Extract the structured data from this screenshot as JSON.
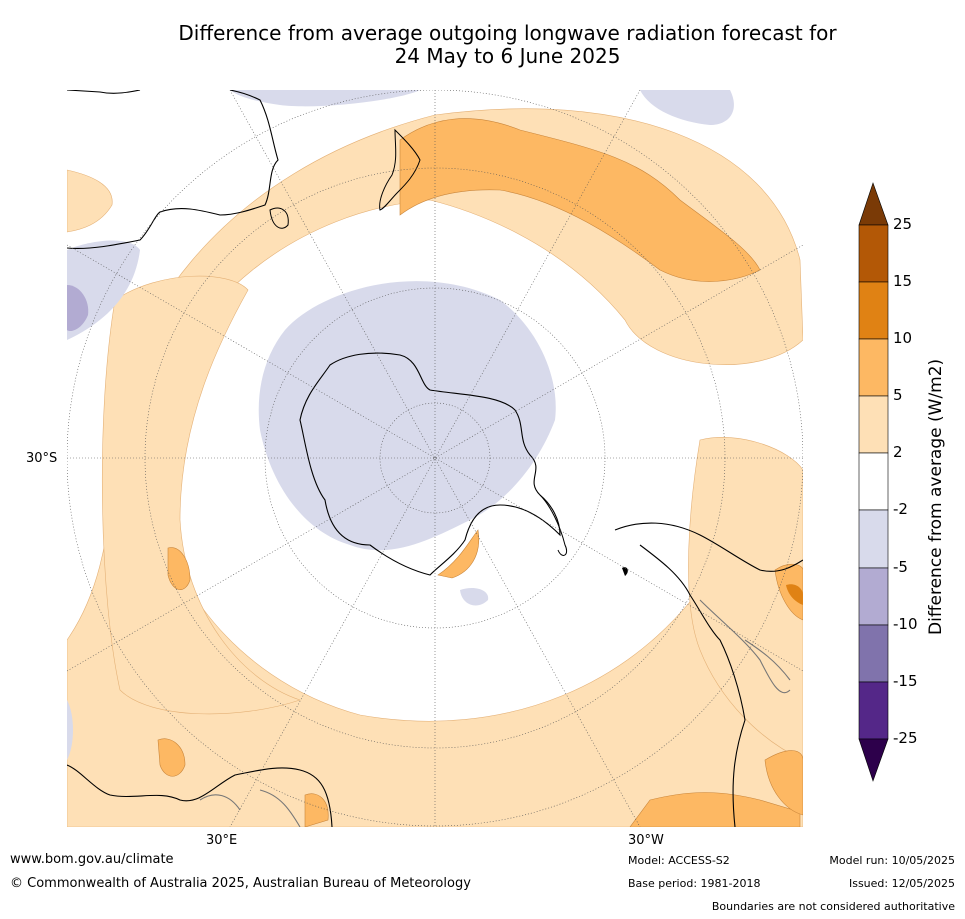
{
  "title_line1": "Difference from average outgoing longwave radiation forecast for",
  "title_line2": "24 May to 6 June 2025",
  "lat_label": "30°S",
  "lon_labels": {
    "east": "30°E",
    "west": "30°W"
  },
  "colorbar": {
    "title": "Difference from average (W/m2)",
    "ticks": [
      "25",
      "15",
      "10",
      "5",
      "2",
      "-2",
      "-5",
      "-10",
      "-15",
      "-25"
    ],
    "colors": {
      "gt25": "#7a3a06",
      "15_25": "#b35806",
      "10_15": "#e08214",
      "5_10": "#fdb863",
      "2_5": "#fee0b6",
      "m2_2": "#ffffff",
      "m5_m2": "#d8daeb",
      "m10_m5": "#b2abd2",
      "m15_m10": "#8073ac",
      "m25_m15": "#542788",
      "lt_m25": "#2d004b"
    }
  },
  "footer": {
    "website": "www.bom.gov.au/climate",
    "copyright": "© Commonwealth of Australia 2025, Australian Bureau of Meteorology",
    "model": "Model: ACCESS-S2",
    "base_period": "Base period: 1981-2018",
    "model_run": "Model run: 10/05/2025",
    "issued": "Issued: 12/05/2025",
    "disclaimer": "Boundaries are not considered authoritative"
  }
}
